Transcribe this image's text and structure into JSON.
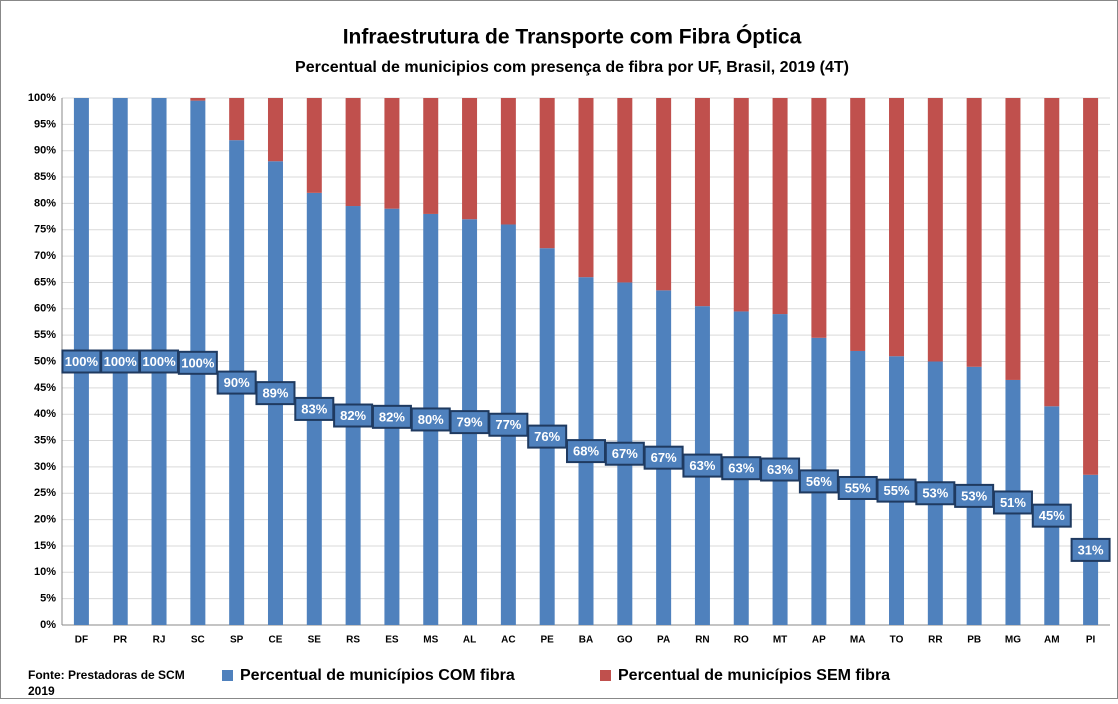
{
  "chart_data": {
    "type": "stacked_bar",
    "title": "Infraestrutura de Transporte com Fibra Óptica",
    "subtitle": "Percentual de municipios  com presença de fibra por UF, Brasil, 2019 (4T)",
    "source": [
      "Fonte: Prestadoras de SCM",
      "2019"
    ],
    "categories": [
      "DF",
      "PR",
      "RJ",
      "SC",
      "SP",
      "CE",
      "SE",
      "RS",
      "ES",
      "MS",
      "AL",
      "AC",
      "PE",
      "BA",
      "GO",
      "PA",
      "RN",
      "RO",
      "MT",
      "AP",
      "MA",
      "TO",
      "RR",
      "PB",
      "MG",
      "AM",
      "PI"
    ],
    "series": [
      {
        "name": "Percentual de municípios COM fibra",
        "color": "#4f81bd",
        "values": [
          100,
          100,
          100,
          99.5,
          92,
          88,
          82,
          79.5,
          79,
          78,
          77,
          76,
          71.5,
          66,
          65,
          63.5,
          60.5,
          59.5,
          59,
          54.5,
          52,
          51,
          50,
          49,
          46.5,
          41.5,
          28.5
        ]
      },
      {
        "name": "Percentual de municípios SEM fibra",
        "color": "#c0504d",
        "values": [
          0,
          0,
          0,
          0.5,
          8,
          12,
          18,
          20.5,
          21,
          22,
          23,
          24,
          28.5,
          34,
          35,
          36.5,
          39.5,
          40.5,
          41,
          45.5,
          48,
          49,
          50,
          51,
          53.5,
          58.5,
          71.5
        ]
      }
    ],
    "annotations": [
      "100%",
      "100%",
      "100%",
      "100%",
      "90%",
      "89%",
      "83%",
      "82%",
      "82%",
      "80%",
      "79%",
      "77%",
      "76%",
      "68%",
      "67%",
      "67%",
      "63%",
      "63%",
      "63%",
      "56%",
      "55%",
      "55%",
      "53%",
      "53%",
      "51%",
      "45%",
      "31%"
    ],
    "ylim": [
      0,
      100
    ],
    "yticks": [
      {
        "value": 0,
        "label": "0%"
      },
      {
        "value": 5,
        "label": "5%"
      },
      {
        "value": 10,
        "label": "10%"
      },
      {
        "value": 15,
        "label": "15%"
      },
      {
        "value": 20,
        "label": "20%"
      },
      {
        "value": 25,
        "label": "25%"
      },
      {
        "value": 30,
        "label": "30%"
      },
      {
        "value": 35,
        "label": "35%"
      },
      {
        "value": 40,
        "label": "40%"
      },
      {
        "value": 45,
        "label": "45%"
      },
      {
        "value": 50,
        "label": "50%"
      },
      {
        "value": 55,
        "label": "55%"
      },
      {
        "value": 60,
        "label": "60%"
      },
      {
        "value": 65,
        "label": "65%"
      },
      {
        "value": 70,
        "label": "70%"
      },
      {
        "value": 75,
        "label": "75%"
      },
      {
        "value": 80,
        "label": "80%"
      },
      {
        "value": 85,
        "label": "85%"
      },
      {
        "value": 90,
        "label": "90%"
      },
      {
        "value": 95,
        "label": "95%"
      },
      {
        "value": 100,
        "label": "100%"
      }
    ],
    "grid": true,
    "legend": "bottom"
  }
}
